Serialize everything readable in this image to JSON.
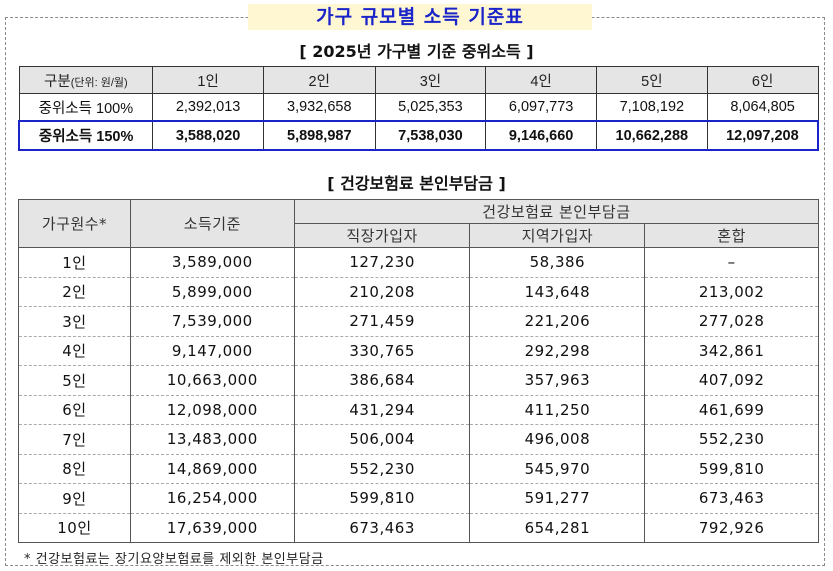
{
  "main_title": "가구 규모별 소득 기준표",
  "median_section": {
    "title": "[ 2025년 가구별 기준 중위소득 ]",
    "header_label": "구분",
    "header_unit": "(단위: 원/월)",
    "columns": [
      "1인",
      "2인",
      "3인",
      "4인",
      "5인",
      "6인"
    ],
    "rows": [
      {
        "label": "중위소득 100%",
        "values": [
          "2,392,013",
          "3,932,658",
          "5,025,353",
          "6,097,773",
          "7,108,192",
          "8,064,805"
        ]
      },
      {
        "label": "중위소득 150%",
        "values": [
          "3,588,020",
          "5,898,987",
          "7,538,030",
          "9,146,660",
          "10,662,288",
          "12,097,208"
        ]
      }
    ]
  },
  "insurance_section": {
    "title": "[ 건강보험료 본인부담금 ]",
    "col_household": "가구원수*",
    "col_income": "소득기준",
    "group_header": "건강보험료 본인부담금",
    "sub_columns": [
      "직장가입자",
      "지역가입자",
      "혼합"
    ],
    "rows": [
      {
        "size": "1인",
        "income": "3,589,000",
        "workplace": "127,230",
        "regional": "58,386",
        "mixed": "–"
      },
      {
        "size": "2인",
        "income": "5,899,000",
        "workplace": "210,208",
        "regional": "143,648",
        "mixed": "213,002"
      },
      {
        "size": "3인",
        "income": "7,539,000",
        "workplace": "271,459",
        "regional": "221,206",
        "mixed": "277,028"
      },
      {
        "size": "4인",
        "income": "9,147,000",
        "workplace": "330,765",
        "regional": "292,298",
        "mixed": "342,861"
      },
      {
        "size": "5인",
        "income": "10,663,000",
        "workplace": "386,684",
        "regional": "357,963",
        "mixed": "407,092"
      },
      {
        "size": "6인",
        "income": "12,098,000",
        "workplace": "431,294",
        "regional": "411,250",
        "mixed": "461,699"
      },
      {
        "size": "7인",
        "income": "13,483,000",
        "workplace": "506,004",
        "regional": "496,008",
        "mixed": "552,230"
      },
      {
        "size": "8인",
        "income": "14,869,000",
        "workplace": "552,230",
        "regional": "545,970",
        "mixed": "599,810"
      },
      {
        "size": "9인",
        "income": "16,254,000",
        "workplace": "599,810",
        "regional": "591,277",
        "mixed": "673,463"
      },
      {
        "size": "10인",
        "income": "17,639,000",
        "workplace": "673,463",
        "regional": "654,281",
        "mixed": "792,926"
      }
    ]
  },
  "footnote": "* 건강보험료는 장기요양보험료를 제외한 본인부담금",
  "colors": {
    "accent_blue": "#1a24c8",
    "title_bg": "#fff7d2",
    "header_bg": "#e5e5e5"
  }
}
